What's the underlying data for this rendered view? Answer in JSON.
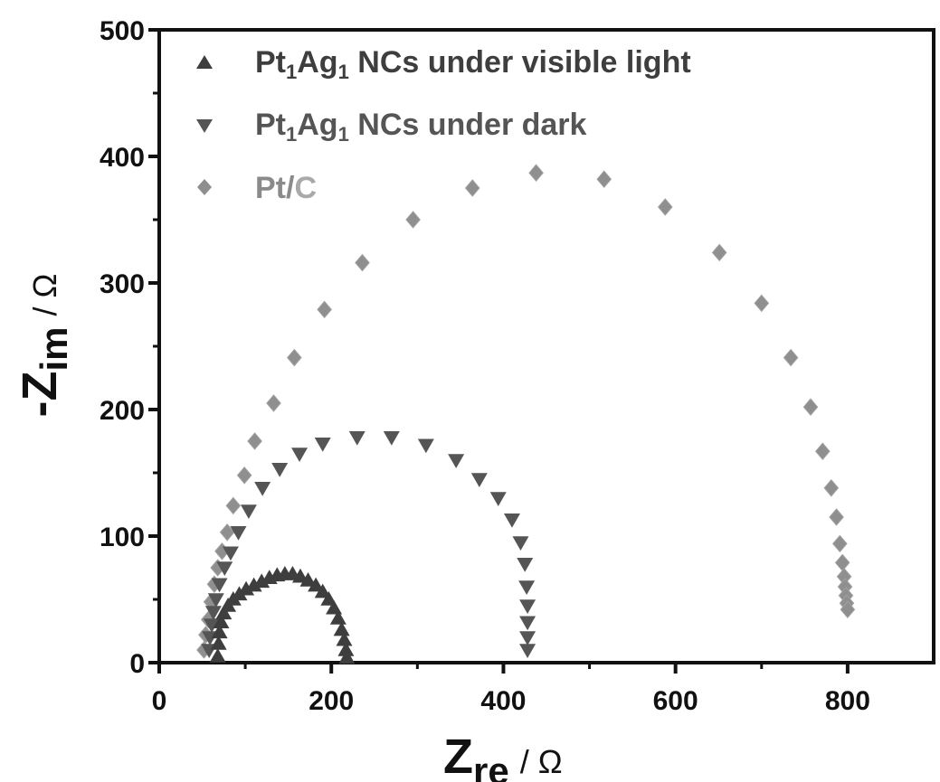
{
  "chart_data": {
    "type": "scatter",
    "title": "",
    "xlabel": {
      "main": "Z",
      "sub": "re",
      "unit": "/ Ω"
    },
    "ylabel": {
      "main": "-Z",
      "sub": "im",
      "unit": "/ Ω"
    },
    "xlim": [
      0,
      900
    ],
    "ylim": [
      0,
      500
    ],
    "x_ticks": [
      0,
      200,
      400,
      600,
      800
    ],
    "y_ticks": [
      0,
      100,
      200,
      300,
      400,
      500
    ],
    "legend_position": "top-left",
    "series": [
      {
        "name_main": "Pt",
        "name_sub1": "1",
        "name_mid": "Ag",
        "name_sub2": "1",
        "name_rest": " NCs under visible light",
        "marker": "triangle-up",
        "color": "#3e3e3e",
        "points": [
          [
            68,
            5
          ],
          [
            69,
            15
          ],
          [
            70,
            24
          ],
          [
            72,
            32
          ],
          [
            75,
            39
          ],
          [
            80,
            45
          ],
          [
            86,
            50
          ],
          [
            93,
            54
          ],
          [
            101,
            58
          ],
          [
            110,
            61
          ],
          [
            119,
            64
          ],
          [
            128,
            67
          ],
          [
            137,
            69
          ],
          [
            146,
            70
          ],
          [
            155,
            70
          ],
          [
            164,
            68
          ],
          [
            173,
            65
          ],
          [
            182,
            61
          ],
          [
            190,
            56
          ],
          [
            197,
            50
          ],
          [
            203,
            43
          ],
          [
            208,
            35
          ],
          [
            212,
            26
          ],
          [
            215,
            18
          ],
          [
            217,
            10
          ],
          [
            218,
            4
          ]
        ]
      },
      {
        "name_main": "Pt",
        "name_sub1": "1",
        "name_mid": "Ag",
        "name_sub2": "1",
        "name_rest": " NCs under dark",
        "marker": "triangle-down",
        "color": "#555555",
        "points": [
          [
            58,
            10
          ],
          [
            59,
            20
          ],
          [
            61,
            30
          ],
          [
            63,
            40
          ],
          [
            66,
            50
          ],
          [
            70,
            62
          ],
          [
            76,
            75
          ],
          [
            83,
            87
          ],
          [
            92,
            103
          ],
          [
            104,
            120
          ],
          [
            120,
            138
          ],
          [
            140,
            153
          ],
          [
            163,
            165
          ],
          [
            190,
            173
          ],
          [
            230,
            178
          ],
          [
            270,
            178
          ],
          [
            310,
            172
          ],
          [
            345,
            160
          ],
          [
            372,
            145
          ],
          [
            394,
            130
          ],
          [
            410,
            113
          ],
          [
            420,
            95
          ],
          [
            425,
            78
          ],
          [
            427,
            60
          ],
          [
            428,
            45
          ],
          [
            428,
            32
          ],
          [
            428,
            20
          ],
          [
            428,
            10
          ]
        ]
      },
      {
        "name_main": "Pt/",
        "name_sub1": "",
        "name_mid": "C",
        "name_sub2": "",
        "name_rest": "",
        "marker": "diamond",
        "color": "#8f8f8f",
        "points": [
          [
            52,
            10
          ],
          [
            54,
            22
          ],
          [
            57,
            34
          ],
          [
            60,
            48
          ],
          [
            64,
            62
          ],
          [
            68,
            75
          ],
          [
            73,
            88
          ],
          [
            79,
            103
          ],
          [
            86,
            124
          ],
          [
            99,
            148
          ],
          [
            111,
            175
          ],
          [
            133,
            205
          ],
          [
            157,
            241
          ],
          [
            192,
            279
          ],
          [
            236,
            316
          ],
          [
            295,
            350
          ],
          [
            364,
            375
          ],
          [
            438,
            387
          ],
          [
            517,
            382
          ],
          [
            588,
            360
          ],
          [
            651,
            324
          ],
          [
            700,
            284
          ],
          [
            734,
            241
          ],
          [
            757,
            202
          ],
          [
            771,
            167
          ],
          [
            781,
            138
          ],
          [
            787,
            115
          ],
          [
            791,
            94
          ],
          [
            794,
            79
          ],
          [
            796,
            68
          ],
          [
            797,
            60
          ],
          [
            798,
            53
          ],
          [
            799,
            47
          ],
          [
            800,
            42
          ]
        ]
      }
    ]
  }
}
